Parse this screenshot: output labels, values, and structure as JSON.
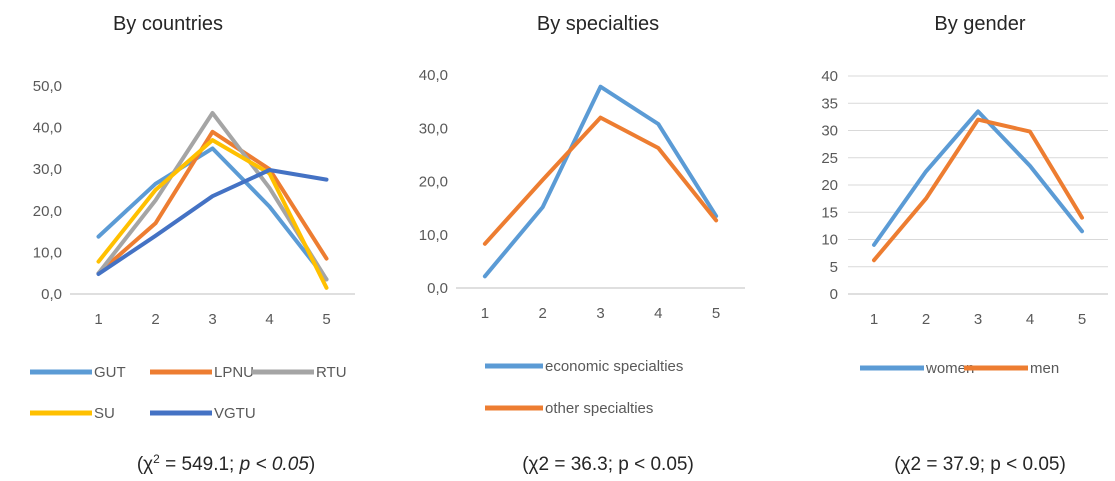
{
  "chart_data": [
    {
      "type": "line",
      "title": "By countries",
      "x": [
        "1",
        "2",
        "3",
        "4",
        "5"
      ],
      "ylim": [
        0,
        50
      ],
      "yticks": [
        "0,0",
        "10,0",
        "20,0",
        "30,0",
        "40,0",
        "50,0"
      ],
      "grid": false,
      "legend": "bottom",
      "series": [
        {
          "name": "GUT",
          "color": "#5b9bd5",
          "values": [
            13.8,
            26.5,
            35.0,
            21.0,
            3.5
          ]
        },
        {
          "name": "LPNU",
          "color": "#ed7d31",
          "values": [
            5.0,
            17.0,
            39.0,
            30.0,
            8.5
          ]
        },
        {
          "name": "RTU",
          "color": "#a5a5a5",
          "values": [
            5.0,
            22.5,
            43.5,
            25.5,
            3.5
          ]
        },
        {
          "name": "SU",
          "color": "#ffc000",
          "values": [
            7.8,
            25.0,
            37.0,
            29.0,
            1.5
          ]
        },
        {
          "name": "VGTU",
          "color": "#4472c4",
          "values": [
            4.8,
            14.0,
            23.5,
            29.8,
            27.5
          ]
        }
      ],
      "caption": {
        "pre": "(χ",
        "sup": "2",
        "mid": " = 549.1; ",
        "p": "p",
        "lt": " < ",
        "val": "0.05",
        "post": ")"
      }
    },
    {
      "type": "line",
      "title": "By specialties",
      "x": [
        "1",
        "2",
        "3",
        "4",
        "5"
      ],
      "ylim": [
        0,
        40
      ],
      "yticks": [
        "0,0",
        "10,0",
        "20,0",
        "30,0",
        "40,0"
      ],
      "grid": false,
      "legend": "bottom",
      "series": [
        {
          "name": "economic specialties",
          "color": "#5b9bd5",
          "values": [
            2.2,
            15.2,
            37.8,
            30.8,
            13.5
          ]
        },
        {
          "name": "other specialties",
          "color": "#ed7d31",
          "values": [
            8.3,
            20.3,
            32.0,
            26.3,
            12.7
          ]
        }
      ],
      "caption": {
        "text": "(χ2 = 36.3; p < 0.05)"
      }
    },
    {
      "type": "line",
      "title": "By gender",
      "x": [
        "1",
        "2",
        "3",
        "4",
        "5"
      ],
      "ylim": [
        0,
        40
      ],
      "yticks": [
        "0",
        "5",
        "10",
        "15",
        "20",
        "25",
        "30",
        "35",
        "40"
      ],
      "grid": true,
      "legend": "bottom",
      "series": [
        {
          "name": "women",
          "color": "#5b9bd5",
          "values": [
            9.0,
            22.5,
            33.5,
            23.5,
            11.5
          ]
        },
        {
          "name": "men",
          "color": "#ed7d31",
          "values": [
            6.2,
            17.5,
            32.0,
            29.8,
            14.0
          ]
        }
      ],
      "caption": {
        "text": "(χ2 = 37.9; p < 0.05)"
      }
    }
  ]
}
